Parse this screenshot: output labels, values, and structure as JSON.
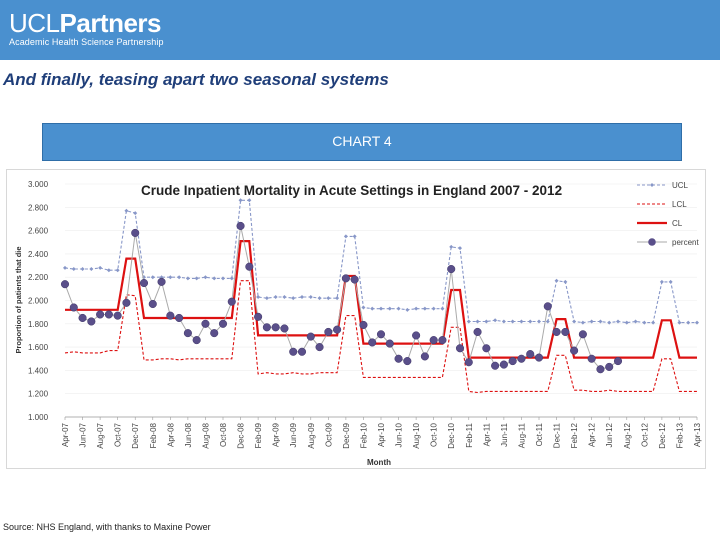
{
  "header": {
    "logo_main_a": "UCL",
    "logo_main_b": "Partners",
    "logo_sub": "Academic Health Science Partnership"
  },
  "slide": {
    "title": "And finally, teasing apart two seasonal systems",
    "banner": "CHART 4",
    "source": "Source: NHS England, with thanks to Maxine Power"
  },
  "colors": {
    "header_bg": "#4a90cf",
    "ucl": "#8897c8",
    "lcl": "#dd1111",
    "cl": "#dd1111",
    "percent_marker": "#5a4f8a",
    "percent_line": "#aaaaaa"
  },
  "chart_data": {
    "type": "line",
    "title": "Crude Inpatient Mortality in Acute Settings in England 2007 - 2012",
    "xlabel": "Month",
    "ylabel": "Proportion of patients that die",
    "ylim": [
      1.0,
      3.0
    ],
    "yticks": [
      "3.000",
      "2.800",
      "2.600",
      "2.400",
      "2.200",
      "2.000",
      "1.800",
      "1.600",
      "1.400",
      "1.200",
      "1.000"
    ],
    "legend_position": "top-right",
    "categories": [
      "Apr-07",
      "May-07",
      "Jun-07",
      "Jul-07",
      "Aug-07",
      "Sep-07",
      "Oct-07",
      "Nov-07",
      "Dec-07",
      "Jan-08",
      "Feb-08",
      "Mar-08",
      "Apr-08",
      "May-08",
      "Jun-08",
      "Jul-08",
      "Aug-08",
      "Sep-08",
      "Oct-08",
      "Nov-08",
      "Dec-08",
      "Jan-09",
      "Feb-09",
      "Mar-09",
      "Apr-09",
      "May-09",
      "Jun-09",
      "Jul-09",
      "Aug-09",
      "Sep-09",
      "Oct-09",
      "Nov-09",
      "Dec-09",
      "Jan-10",
      "Feb-10",
      "Mar-10",
      "Apr-10",
      "May-10",
      "Jun-10",
      "Jul-10",
      "Aug-10",
      "Sep-10",
      "Oct-10",
      "Nov-10",
      "Dec-10",
      "Jan-11",
      "Feb-11",
      "Mar-11",
      "Apr-11",
      "May-11",
      "Jun-11",
      "Jul-11",
      "Aug-11",
      "Sep-11",
      "Oct-11",
      "Nov-11",
      "Dec-11",
      "Jan-12",
      "Feb-12",
      "Mar-12",
      "Apr-12",
      "May-12",
      "Jun-12",
      "Jul-12",
      "Aug-12",
      "Sep-12",
      "Oct-12",
      "Nov-12",
      "Dec-12",
      "Jan-13",
      "Feb-13",
      "Mar-13",
      "Apr-13"
    ],
    "tick_labels": [
      "Apr-07",
      "Jun-07",
      "Aug-07",
      "Oct-07",
      "Dec-07",
      "Feb-08",
      "Apr-08",
      "Jun-08",
      "Aug-08",
      "Oct-08",
      "Dec-08",
      "Feb-09",
      "Apr-09",
      "Jun-09",
      "Aug-09",
      "Oct-09",
      "Dec-09",
      "Feb-10",
      "Apr-10",
      "Jun-10",
      "Aug-10",
      "Oct-10",
      "Dec-10",
      "Feb-11",
      "Apr-11",
      "Jun-11",
      "Aug-11",
      "Oct-11",
      "Dec-11",
      "Feb-12",
      "Apr-12",
      "Jun-12",
      "Aug-12",
      "Oct-12",
      "Dec-12",
      "Feb-13",
      "Apr-13"
    ],
    "series": [
      {
        "name": "UCL",
        "values": [
          2.28,
          2.27,
          2.27,
          2.27,
          2.28,
          2.26,
          2.26,
          2.77,
          2.75,
          2.2,
          2.2,
          2.2,
          2.2,
          2.2,
          2.19,
          2.19,
          2.2,
          2.19,
          2.19,
          2.19,
          2.86,
          2.86,
          2.03,
          2.02,
          2.03,
          2.03,
          2.02,
          2.03,
          2.03,
          2.02,
          2.02,
          2.02,
          2.55,
          2.55,
          1.94,
          1.93,
          1.93,
          1.93,
          1.93,
          1.92,
          1.93,
          1.93,
          1.93,
          1.93,
          2.46,
          2.45,
          1.82,
          1.82,
          1.82,
          1.83,
          1.82,
          1.82,
          1.82,
          1.82,
          1.82,
          1.82,
          2.17,
          2.16,
          1.82,
          1.81,
          1.82,
          1.82,
          1.81,
          1.82,
          1.81,
          1.82,
          1.81,
          1.81,
          2.16,
          2.16,
          1.81,
          1.81,
          1.81
        ]
      },
      {
        "name": "LCL",
        "values": [
          1.55,
          1.56,
          1.55,
          1.55,
          1.55,
          1.57,
          1.57,
          2.05,
          2.04,
          1.49,
          1.49,
          1.5,
          1.5,
          1.49,
          1.5,
          1.5,
          1.5,
          1.5,
          1.5,
          1.5,
          2.17,
          2.17,
          1.37,
          1.38,
          1.37,
          1.37,
          1.38,
          1.37,
          1.37,
          1.38,
          1.38,
          1.38,
          1.87,
          1.87,
          1.34,
          1.34,
          1.34,
          1.34,
          1.34,
          1.34,
          1.34,
          1.34,
          1.34,
          1.34,
          1.77,
          1.77,
          1.22,
          1.21,
          1.22,
          1.22,
          1.22,
          1.22,
          1.22,
          1.22,
          1.22,
          1.22,
          1.53,
          1.53,
          1.23,
          1.23,
          1.22,
          1.22,
          1.23,
          1.22,
          1.22,
          1.22,
          1.22,
          1.22,
          1.5,
          1.5,
          1.22,
          1.22,
          1.22
        ]
      },
      {
        "name": "CL",
        "values": [
          1.92,
          1.92,
          1.92,
          1.92,
          1.92,
          1.92,
          1.92,
          2.36,
          2.36,
          1.85,
          1.85,
          1.85,
          1.85,
          1.85,
          1.85,
          1.85,
          1.85,
          1.85,
          1.85,
          1.85,
          2.51,
          2.51,
          1.7,
          1.7,
          1.7,
          1.7,
          1.7,
          1.7,
          1.7,
          1.7,
          1.7,
          1.7,
          2.21,
          2.21,
          1.63,
          1.63,
          1.63,
          1.63,
          1.63,
          1.63,
          1.63,
          1.63,
          1.63,
          1.63,
          2.09,
          2.09,
          1.51,
          1.51,
          1.51,
          1.51,
          1.51,
          1.51,
          1.51,
          1.51,
          1.51,
          1.51,
          1.84,
          1.84,
          1.51,
          1.51,
          1.51,
          1.51,
          1.51,
          1.51,
          1.51,
          1.51,
          1.51,
          1.51,
          1.83,
          1.83,
          1.51,
          1.51,
          1.51
        ]
      },
      {
        "name": "percent",
        "values": [
          2.14,
          1.94,
          1.85,
          1.82,
          1.88,
          1.88,
          1.87,
          1.98,
          2.58,
          2.15,
          1.97,
          2.16,
          1.87,
          1.85,
          1.72,
          1.66,
          1.8,
          1.72,
          1.8,
          1.99,
          2.64,
          2.29,
          1.86,
          1.77,
          1.77,
          1.76,
          1.56,
          1.56,
          1.69,
          1.6,
          1.73,
          1.75,
          2.19,
          2.18,
          1.79,
          1.64,
          1.71,
          1.63,
          1.5,
          1.48,
          1.7,
          1.52,
          1.66,
          1.66,
          2.27,
          1.59,
          1.47,
          1.73,
          1.59,
          1.44,
          1.45,
          1.48,
          1.5,
          1.54,
          1.51,
          1.95,
          1.73,
          1.73,
          1.57,
          1.71,
          1.5,
          1.41,
          1.43,
          1.48,
          null,
          null,
          null,
          null,
          null,
          null,
          null,
          null,
          null
        ]
      }
    ]
  }
}
